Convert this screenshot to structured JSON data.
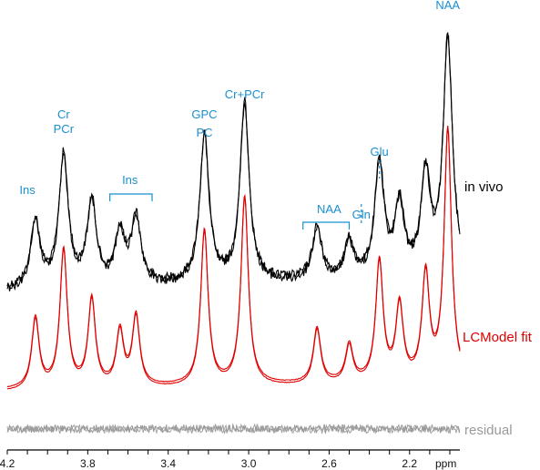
{
  "chart_data": {
    "type": "line",
    "x_unit": "ppm",
    "x_axis_reversed": true,
    "xlim": [
      4.2,
      1.95
    ],
    "x_ticks": [
      "4.2",
      "3.8",
      "3.4",
      "3.0",
      "2.6",
      "2.2"
    ],
    "grid": false,
    "colors": {
      "peak_labels": "#1a8fd0",
      "in_vivo": "#000000",
      "fit": "#e00000",
      "residual": "#9a9a9a"
    },
    "series": [
      {
        "name": "in vivo",
        "kind": "in_vivo"
      },
      {
        "name": "LCModel fit",
        "kind": "fit"
      },
      {
        "name": "residual",
        "kind": "residual"
      }
    ],
    "peaks": [
      {
        "ppm": 3.56,
        "rel": 0.28
      },
      {
        "ppm": 3.92,
        "rel": 0.55
      },
      {
        "ppm": 3.78,
        "rel": 0.35
      },
      {
        "ppm": 3.64,
        "rel": 0.22
      },
      {
        "ppm": 3.22,
        "rel": 0.62
      },
      {
        "ppm": 3.02,
        "rel": 0.75
      },
      {
        "ppm": 2.66,
        "rel": 0.22
      },
      {
        "ppm": 2.5,
        "rel": 0.15
      },
      {
        "ppm": 2.35,
        "rel": 0.48
      },
      {
        "ppm": 2.25,
        "rel": 0.3
      },
      {
        "ppm": 2.12,
        "rel": 0.42
      },
      {
        "ppm": 2.01,
        "rel": 1.0
      },
      {
        "ppm": 4.06,
        "rel": 0.28
      }
    ],
    "annotations": [
      {
        "text": "Ins",
        "ppm": 4.1
      },
      {
        "text": "Cr",
        "ppm": 3.92
      },
      {
        "text": "PCr",
        "ppm": 3.92
      },
      {
        "text": "Ins",
        "ppm": 3.59
      },
      {
        "text": "GPC",
        "ppm": 3.22
      },
      {
        "text": "PC",
        "ppm": 3.22
      },
      {
        "text": "Cr+PCr",
        "ppm": 3.02
      },
      {
        "text": "NAA",
        "ppm": 2.6
      },
      {
        "text": "Gln",
        "ppm": 2.44
      },
      {
        "text": "Glu",
        "ppm": 2.35
      },
      {
        "text": "NAA",
        "ppm": 2.01
      }
    ]
  }
}
